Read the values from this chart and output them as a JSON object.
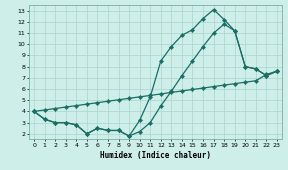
{
  "xlabel": "Humidex (Indice chaleur)",
  "xlim": [
    -0.5,
    23.5
  ],
  "ylim": [
    1.5,
    13.5
  ],
  "yticks": [
    2,
    3,
    4,
    5,
    6,
    7,
    8,
    9,
    10,
    11,
    12,
    13
  ],
  "xticks": [
    0,
    1,
    2,
    3,
    4,
    5,
    6,
    7,
    8,
    9,
    10,
    11,
    12,
    13,
    14,
    15,
    16,
    17,
    18,
    19,
    20,
    21,
    22,
    23
  ],
  "bg_color": "#ceeee9",
  "grid_color": "#aad4cf",
  "line_color": "#1a6e65",
  "line1_x": [
    0,
    1,
    2,
    3,
    4,
    5,
    6,
    7,
    8,
    9,
    10,
    11,
    12,
    13,
    14,
    15,
    16,
    17,
    18,
    19,
    20,
    21,
    22,
    23
  ],
  "line1_y": [
    4.0,
    3.3,
    3.0,
    3.0,
    2.8,
    2.0,
    2.5,
    2.3,
    2.3,
    1.8,
    3.2,
    5.3,
    8.5,
    9.8,
    10.8,
    11.3,
    12.3,
    13.1,
    12.2,
    11.2,
    8.0,
    7.8,
    7.2,
    7.6
  ],
  "line2_x": [
    0,
    1,
    2,
    3,
    4,
    5,
    6,
    7,
    8,
    9,
    10,
    11,
    12,
    13,
    14,
    15,
    16,
    17,
    18,
    19,
    20,
    21,
    22,
    23
  ],
  "line2_y": [
    4.0,
    3.3,
    3.0,
    3.0,
    2.8,
    2.0,
    2.5,
    2.3,
    2.3,
    1.8,
    2.2,
    3.0,
    4.5,
    5.8,
    7.2,
    8.5,
    9.8,
    11.0,
    11.8,
    11.2,
    8.0,
    7.8,
    7.2,
    7.6
  ],
  "line3_x": [
    0,
    1,
    2,
    3,
    4,
    5,
    6,
    7,
    8,
    9,
    10,
    11,
    12,
    13,
    14,
    15,
    16,
    17,
    18,
    19,
    20,
    21,
    22,
    23
  ],
  "line3_y": [
    4.0,
    4.13,
    4.26,
    4.39,
    4.52,
    4.65,
    4.78,
    4.91,
    5.04,
    5.17,
    5.3,
    5.43,
    5.56,
    5.7,
    5.83,
    5.96,
    6.09,
    6.22,
    6.35,
    6.48,
    6.61,
    6.74,
    7.3,
    7.6
  ],
  "marker": "D",
  "markersize": 2.2,
  "linewidth": 0.9
}
